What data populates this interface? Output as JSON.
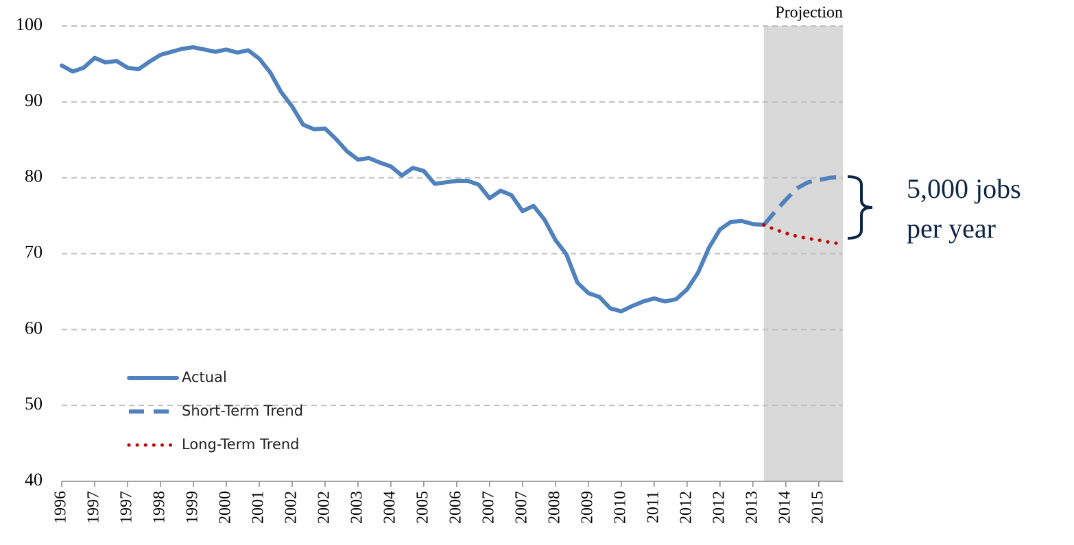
{
  "chart_data": {
    "type": "line",
    "x": [
      0,
      1,
      2,
      3,
      4,
      5,
      6,
      7,
      8,
      9,
      10,
      11,
      12,
      13,
      14,
      15,
      16,
      17,
      18,
      19,
      20,
      21,
      22,
      23,
      24,
      25,
      26,
      27,
      28,
      29,
      30,
      31,
      32,
      33,
      34,
      35,
      36,
      37,
      38,
      39,
      40,
      41,
      42,
      43,
      44,
      45,
      46,
      47,
      48,
      49,
      50,
      51,
      52,
      53,
      54,
      55,
      56,
      57,
      58,
      59,
      60,
      61,
      62,
      63,
      64,
      65,
      66,
      67,
      68,
      69,
      70,
      71
    ],
    "series": [
      {
        "name": "Actual",
        "color": "#4f81bd",
        "dash": "solid",
        "values": [
          94.8,
          94.0,
          94.5,
          95.8,
          95.2,
          95.4,
          94.5,
          94.3,
          95.3,
          96.2,
          96.6,
          97.0,
          97.2,
          96.9,
          96.6,
          96.9,
          96.5,
          96.8,
          95.7,
          93.9,
          91.3,
          89.4,
          87.0,
          86.4,
          86.5,
          85.1,
          83.5,
          82.4,
          82.6,
          82.0,
          81.5,
          80.3,
          81.3,
          80.9,
          79.2,
          79.4,
          79.6,
          79.6,
          79.1,
          77.3,
          78.3,
          77.7,
          75.6,
          76.3,
          74.5,
          71.8,
          69.9,
          66.2,
          64.8,
          64.3,
          62.8,
          62.4,
          63.1,
          63.7,
          64.1,
          63.7,
          64.0,
          65.3,
          67.5,
          70.8,
          73.2,
          74.2,
          74.3,
          73.9,
          73.8,
          null,
          null,
          null,
          null,
          null,
          null,
          null
        ]
      },
      {
        "name": "Short-Term Trend",
        "color": "#4f81bd",
        "dash": "dashed",
        "values": [
          null,
          null,
          null,
          null,
          null,
          null,
          null,
          null,
          null,
          null,
          null,
          null,
          null,
          null,
          null,
          null,
          null,
          null,
          null,
          null,
          null,
          null,
          null,
          null,
          null,
          null,
          null,
          null,
          null,
          null,
          null,
          null,
          null,
          null,
          null,
          null,
          null,
          null,
          null,
          null,
          null,
          null,
          null,
          null,
          null,
          null,
          null,
          null,
          null,
          null,
          null,
          null,
          null,
          null,
          null,
          null,
          null,
          null,
          null,
          null,
          null,
          null,
          null,
          null,
          73.8,
          75.5,
          77.1,
          78.6,
          79.4,
          79.7,
          80.0,
          80.1
        ]
      },
      {
        "name": "Long-Term Trend",
        "color": "#c00000",
        "dash": "dotted",
        "values": [
          null,
          null,
          null,
          null,
          null,
          null,
          null,
          null,
          null,
          null,
          null,
          null,
          null,
          null,
          null,
          null,
          null,
          null,
          null,
          null,
          null,
          null,
          null,
          null,
          null,
          null,
          null,
          null,
          null,
          null,
          null,
          null,
          null,
          null,
          null,
          null,
          null,
          null,
          null,
          null,
          null,
          null,
          null,
          null,
          null,
          null,
          null,
          null,
          null,
          null,
          null,
          null,
          null,
          null,
          null,
          null,
          null,
          null,
          null,
          null,
          null,
          null,
          null,
          null,
          73.8,
          73.2,
          72.7,
          72.3,
          72.0,
          71.8,
          71.5,
          71.3
        ]
      }
    ],
    "xlim": [
      0,
      71.2
    ],
    "xticks": [
      {
        "value": 0,
        "label": "1996"
      },
      {
        "value": 3,
        "label": "1997"
      },
      {
        "value": 6,
        "label": "1997"
      },
      {
        "value": 9,
        "label": "1998"
      },
      {
        "value": 12,
        "label": "1999"
      },
      {
        "value": 15,
        "label": "2000"
      },
      {
        "value": 18,
        "label": "2001"
      },
      {
        "value": 21,
        "label": "2002"
      },
      {
        "value": 24,
        "label": "2002"
      },
      {
        "value": 27,
        "label": "2003"
      },
      {
        "value": 30,
        "label": "2004"
      },
      {
        "value": 33,
        "label": "2005"
      },
      {
        "value": 36,
        "label": "2006"
      },
      {
        "value": 39,
        "label": "2007"
      },
      {
        "value": 42,
        "label": "2007"
      },
      {
        "value": 45,
        "label": "2008"
      },
      {
        "value": 48,
        "label": "2009"
      },
      {
        "value": 51,
        "label": "2010"
      },
      {
        "value": 54,
        "label": "2011"
      },
      {
        "value": 57,
        "label": "2012"
      },
      {
        "value": 60,
        "label": "2012"
      },
      {
        "value": 63,
        "label": "2013"
      },
      {
        "value": 66,
        "label": "2014"
      },
      {
        "value": 69,
        "label": "2015"
      }
    ],
    "ylim": [
      40,
      100
    ],
    "yticks": [
      40,
      50,
      60,
      70,
      80,
      90,
      100
    ],
    "grid": true,
    "legend": "lower left",
    "shade": {
      "label": "Projection",
      "x": [
        64,
        71.2
      ],
      "color": "#d9d9d9"
    },
    "annotation": [
      "5,000 jobs",
      "per year"
    ]
  }
}
